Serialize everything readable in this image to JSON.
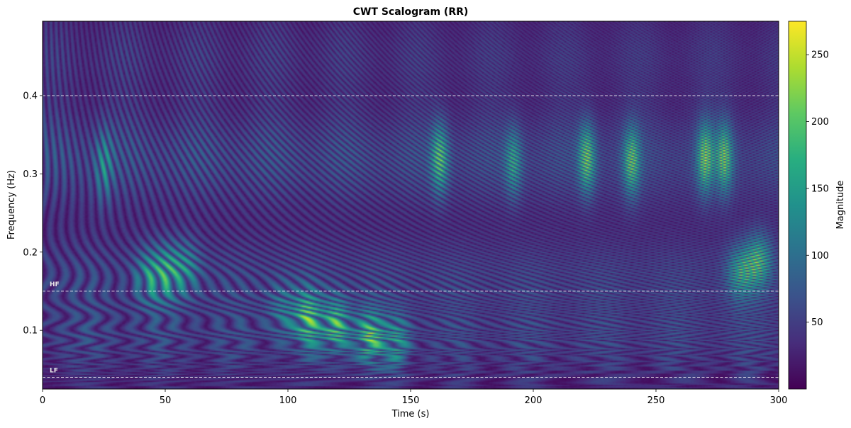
{
  "chart_data": {
    "type": "heatmap",
    "title": "CWT Scalogram (RR)",
    "xlabel": "Time (s)",
    "ylabel": "Frequency (Hz)",
    "colorbar_label": "Magnitude",
    "colormap": "viridis",
    "xlim": [
      0,
      300
    ],
    "ylim": [
      0.025,
      0.495
    ],
    "x_ticks": [
      0,
      50,
      100,
      150,
      200,
      250,
      300
    ],
    "y_ticks": [
      0.1,
      0.2,
      0.3,
      0.4
    ],
    "y_tick_labels": [
      "0.1",
      "0.2",
      "0.3",
      "0.4"
    ],
    "clim": [
      0,
      275
    ],
    "colorbar_ticks": [
      50,
      100,
      150,
      200,
      250
    ],
    "reference_lines": [
      {
        "label": "HF",
        "frequency": 0.15
      },
      {
        "label": "LF",
        "frequency": 0.04
      },
      {
        "label": "",
        "frequency": 0.4
      }
    ],
    "hotspots": [
      {
        "time": 108,
        "frequency": 0.115,
        "magnitude": 230
      },
      {
        "time": 120,
        "frequency": 0.105,
        "magnitude": 275
      },
      {
        "time": 133,
        "frequency": 0.09,
        "magnitude": 240
      },
      {
        "time": 145,
        "frequency": 0.085,
        "magnitude": 180
      },
      {
        "time": 97,
        "frequency": 0.125,
        "magnitude": 150
      },
      {
        "time": 51,
        "frequency": 0.175,
        "magnitude": 190
      },
      {
        "time": 43,
        "frequency": 0.17,
        "magnitude": 170
      },
      {
        "time": 59,
        "frequency": 0.18,
        "magnitude": 165
      },
      {
        "time": 292,
        "frequency": 0.19,
        "magnitude": 230
      },
      {
        "time": 284,
        "frequency": 0.175,
        "magnitude": 190
      },
      {
        "time": 162,
        "frequency": 0.32,
        "magnitude": 250
      },
      {
        "time": 222,
        "frequency": 0.32,
        "magnitude": 265
      },
      {
        "time": 240,
        "frequency": 0.315,
        "magnitude": 230
      },
      {
        "time": 270,
        "frequency": 0.32,
        "magnitude": 245
      },
      {
        "time": 278,
        "frequency": 0.32,
        "magnitude": 245
      },
      {
        "time": 192,
        "frequency": 0.315,
        "magnitude": 200
      },
      {
        "time": 25,
        "frequency": 0.31,
        "magnitude": 170
      }
    ]
  }
}
